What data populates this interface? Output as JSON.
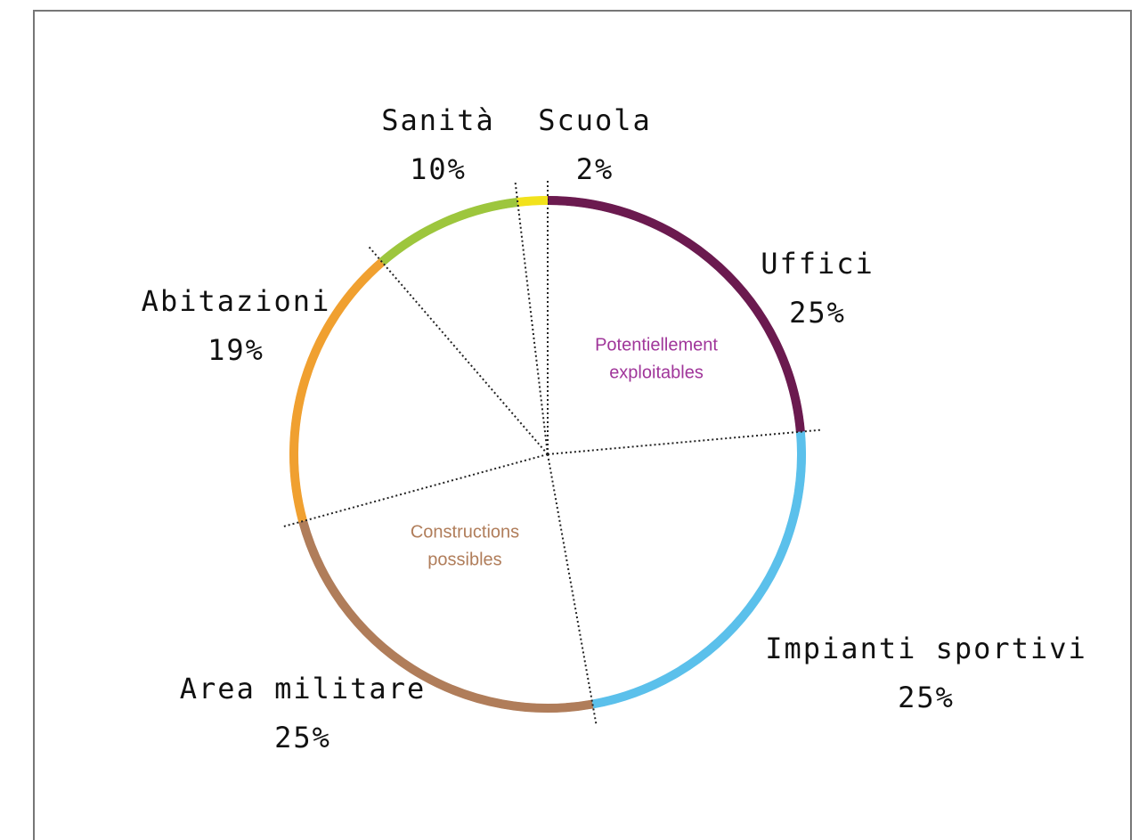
{
  "chart_data": {
    "type": "pie",
    "categories": [
      "Uffici",
      "Impianti sportivi",
      "Area militare",
      "Abitazioni",
      "Sanità",
      "Scuola"
    ],
    "values": [
      25,
      25,
      25,
      19,
      10,
      2
    ],
    "value_labels": [
      "25%",
      "25%",
      "25%",
      "19%",
      "10%",
      "2%"
    ],
    "colors": [
      "#6b1a4f",
      "#5bc0eb",
      "#b07d5a",
      "#f0a030",
      "#9dc63d",
      "#f2e21c"
    ],
    "annotations": [
      {
        "lines": [
          "Potentiellement",
          "exploitables"
        ],
        "color": "#a0369a"
      },
      {
        "lines": [
          "Constructions",
          "possibles"
        ],
        "color": "#b07d5a"
      }
    ]
  }
}
